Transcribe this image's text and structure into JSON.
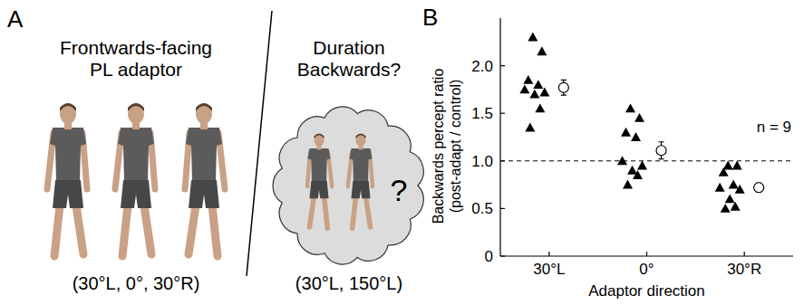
{
  "panel_a": {
    "letter": "A",
    "adaptor_title": "Frontwards-facing PL adaptor",
    "adaptor_directions": "(30°L, 0°, 30°R)",
    "test_title": "Duration Backwards?",
    "test_mark": "?",
    "test_directions": "(30°L, 150°L)"
  },
  "chart_data": {
    "type": "scatter",
    "panel_label": "B",
    "annotation": "n = 9",
    "xlabel": "Adaptor direction",
    "ylabel": "Backwards percept ratio (post-adapt / control)",
    "categories": [
      "30°L",
      "0°",
      "30°R"
    ],
    "ylim": [
      0,
      2.5
    ],
    "yticks": [
      0,
      0.5,
      {
        "value": 1,
        "label": "1.0"
      },
      1.5,
      {
        "value": 2,
        "label": "2.0"
      }
    ],
    "hline": {
      "value": 1,
      "line_style": "dashed"
    },
    "series": [
      {
        "type": "scatter",
        "marker": "triangle",
        "color": "#000000",
        "values": [
          [
            2.3,
            2.15,
            1.85,
            1.8,
            1.75,
            1.72,
            1.7,
            1.55,
            1.35
          ],
          [
            1.55,
            1.45,
            1.3,
            1.25,
            1.0,
            0.95,
            0.9,
            0.85,
            0.75
          ],
          [
            0.95,
            0.95,
            0.88,
            0.75,
            0.72,
            0.7,
            0.6,
            0.52,
            0.5
          ]
        ]
      },
      {
        "type": "errorbar",
        "marker": "circle",
        "color": "#000000",
        "values": [
          1.77,
          1.11,
          0.72
        ],
        "errors": [
          0.08,
          0.09,
          0.05
        ]
      }
    ]
  }
}
